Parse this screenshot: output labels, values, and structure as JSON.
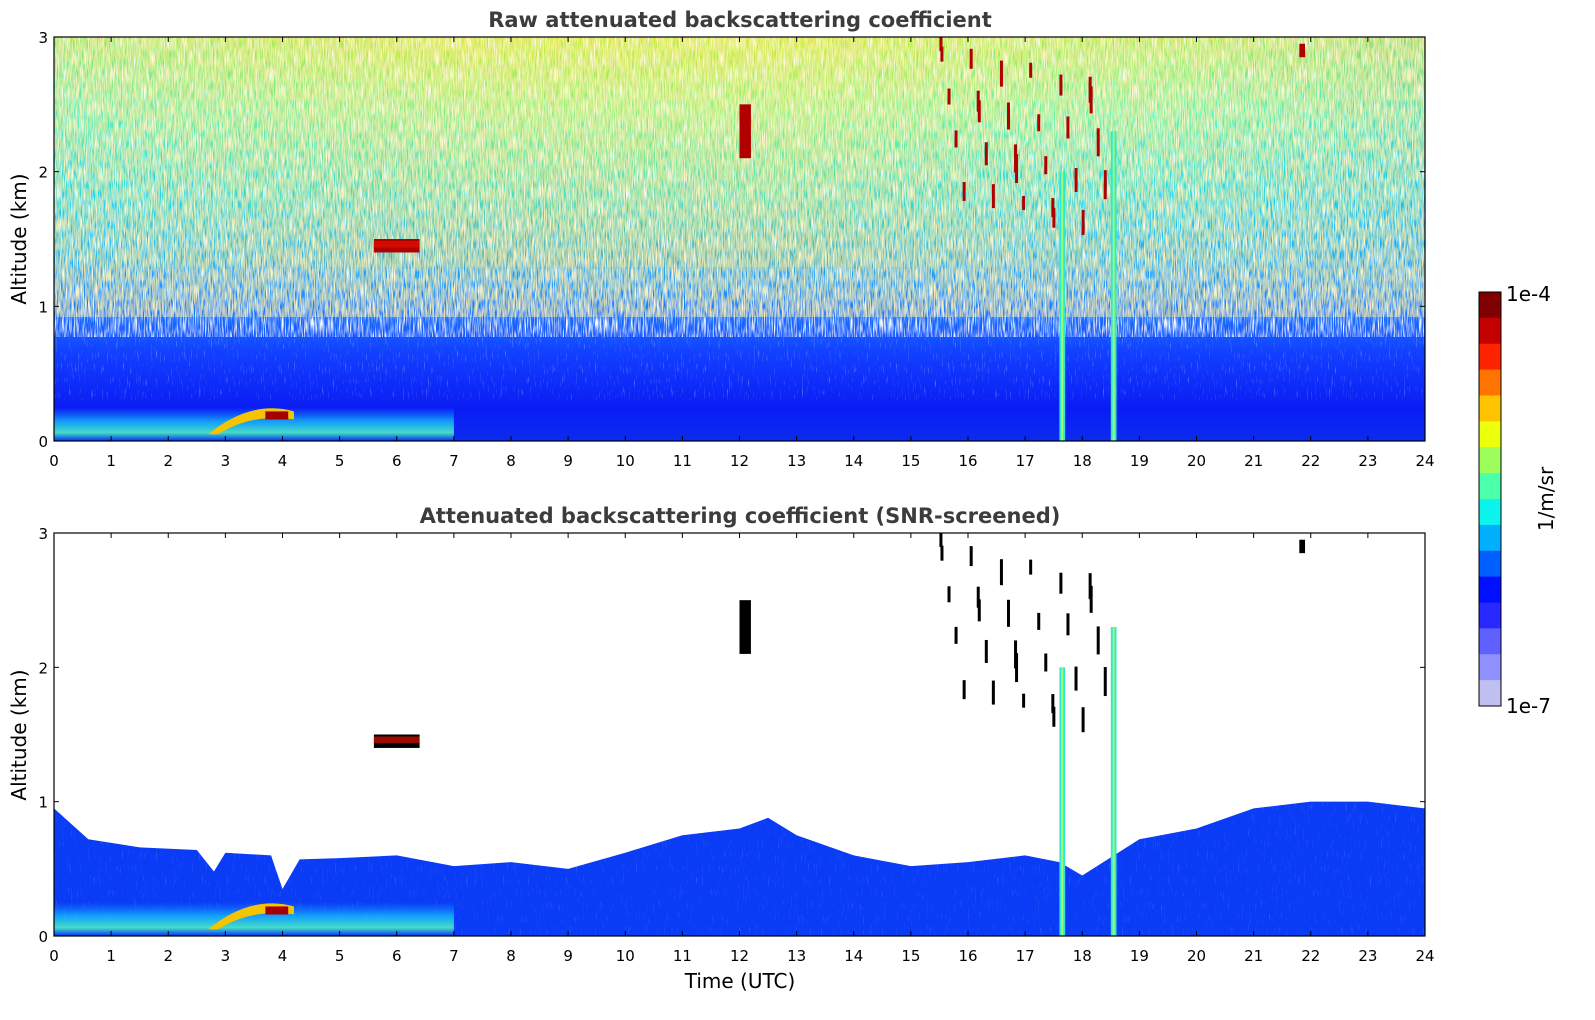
{
  "chart_data": [
    {
      "type": "heatmap",
      "title": "Raw attenuated backscattering coefficient",
      "xlabel": "",
      "ylabel": "Altitude (km)",
      "x_ticks": [
        "0",
        "1",
        "2",
        "3",
        "4",
        "5",
        "6",
        "7",
        "8",
        "9",
        "10",
        "11",
        "12",
        "13",
        "14",
        "15",
        "16",
        "17",
        "18",
        "19",
        "20",
        "21",
        "22",
        "23",
        "24"
      ],
      "y_ticks": [
        "0",
        "1",
        "2",
        "3"
      ],
      "xlim": [
        0,
        24
      ],
      "ylim": [
        0,
        3
      ],
      "screened": false,
      "features": [
        {
          "kind": "surface_layer",
          "t": [
            0,
            7
          ],
          "alt_top": 0.25
        },
        {
          "kind": "aerosol_layer",
          "t": [
            2.7,
            4.2
          ],
          "alt": [
            0.05,
            0.25
          ]
        },
        {
          "kind": "cloud",
          "t": [
            5.6,
            6.4
          ],
          "alt": [
            1.4,
            1.5
          ]
        },
        {
          "kind": "cloud",
          "t": [
            12.0,
            12.2
          ],
          "alt": [
            2.1,
            2.5
          ]
        },
        {
          "kind": "cloud",
          "t": [
            15.5,
            18.5
          ],
          "alt": [
            1.7,
            3.0
          ]
        },
        {
          "kind": "cloud",
          "t": [
            21.8,
            21.9
          ],
          "alt": [
            2.85,
            2.95
          ]
        },
        {
          "kind": "precipitation",
          "t": [
            17.6,
            17.7
          ],
          "alt": [
            0,
            2.0
          ]
        },
        {
          "kind": "precipitation",
          "t": [
            18.5,
            18.6
          ],
          "alt": [
            0,
            2.3
          ]
        }
      ]
    },
    {
      "type": "heatmap",
      "title": "Attenuated backscattering coefficient (SNR-screened)",
      "xlabel": "Time (UTC)",
      "ylabel": "Altitude (km)",
      "x_ticks": [
        "0",
        "1",
        "2",
        "3",
        "4",
        "5",
        "6",
        "7",
        "8",
        "9",
        "10",
        "11",
        "12",
        "13",
        "14",
        "15",
        "16",
        "17",
        "18",
        "19",
        "20",
        "21",
        "22",
        "23",
        "24"
      ],
      "y_ticks": [
        "0",
        "1",
        "2",
        "3"
      ],
      "xlim": [
        0,
        24
      ],
      "ylim": [
        0,
        3
      ],
      "screened": true,
      "boundary_layer_top": [
        [
          0,
          0.95
        ],
        [
          0.6,
          0.72
        ],
        [
          1.5,
          0.66
        ],
        [
          2.5,
          0.64
        ],
        [
          2.8,
          0.48
        ],
        [
          3.0,
          0.62
        ],
        [
          3.8,
          0.6
        ],
        [
          4.0,
          0.35
        ],
        [
          4.3,
          0.57
        ],
        [
          5.0,
          0.58
        ],
        [
          6.0,
          0.6
        ],
        [
          7.0,
          0.52
        ],
        [
          8.0,
          0.55
        ],
        [
          9.0,
          0.5
        ],
        [
          10.0,
          0.62
        ],
        [
          11.0,
          0.75
        ],
        [
          12.0,
          0.8
        ],
        [
          12.5,
          0.88
        ],
        [
          13.0,
          0.75
        ],
        [
          14.0,
          0.6
        ],
        [
          15.0,
          0.52
        ],
        [
          16.0,
          0.55
        ],
        [
          17.0,
          0.6
        ],
        [
          17.6,
          0.55
        ],
        [
          18.0,
          0.45
        ],
        [
          19.0,
          0.72
        ],
        [
          20.0,
          0.8
        ],
        [
          21.0,
          0.95
        ],
        [
          22.0,
          1.0
        ],
        [
          23.0,
          1.0
        ],
        [
          24.0,
          0.95
        ]
      ]
    }
  ],
  "colorbar": {
    "max_label": "1e-4",
    "min_label": "1e-7",
    "label": "1/m/sr",
    "colors": [
      "#7f0000",
      "#c40000",
      "#ff2400",
      "#ff7400",
      "#ffc400",
      "#ecff0b",
      "#9cff5b",
      "#4cffab",
      "#0bf5ec",
      "#00b0ff",
      "#0060ff",
      "#0010ff",
      "#2828ff",
      "#6060ff",
      "#9090ff",
      "#c0c0f0"
    ]
  }
}
